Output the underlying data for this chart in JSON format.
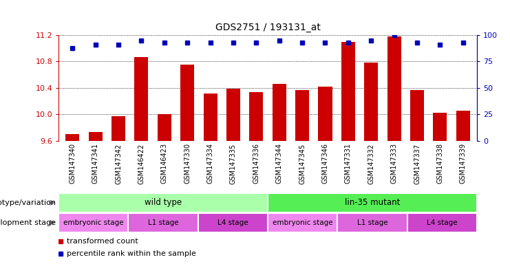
{
  "title": "GDS2751 / 193131_at",
  "samples": [
    "GSM147340",
    "GSM147341",
    "GSM147342",
    "GSM146422",
    "GSM146423",
    "GSM147330",
    "GSM147334",
    "GSM147335",
    "GSM147336",
    "GSM147344",
    "GSM147345",
    "GSM147346",
    "GSM147331",
    "GSM147332",
    "GSM147333",
    "GSM147337",
    "GSM147338",
    "GSM147339"
  ],
  "transformed_count": [
    9.7,
    9.73,
    9.97,
    10.87,
    10.0,
    10.75,
    10.32,
    10.39,
    10.34,
    10.46,
    10.37,
    10.42,
    11.1,
    10.78,
    11.18,
    10.37,
    10.02,
    10.05
  ],
  "percentile_rank": [
    88,
    91,
    91,
    95,
    93,
    93,
    93,
    93,
    93,
    95,
    93,
    93,
    93,
    95,
    100,
    93,
    91,
    93
  ],
  "ylim_left": [
    9.6,
    11.2
  ],
  "ylim_right": [
    0,
    100
  ],
  "yticks_left": [
    9.6,
    10.0,
    10.4,
    10.8,
    11.2
  ],
  "yticks_right": [
    0,
    25,
    50,
    75,
    100
  ],
  "bar_color": "#cc0000",
  "dot_color": "#0000bb",
  "bg_color": "#ffffff",
  "tick_area_color": "#c8c8c8",
  "genotype_row": {
    "label": "genotype/variation",
    "segments": [
      {
        "text": "wild type",
        "start": 0,
        "end": 9,
        "color": "#aaffaa"
      },
      {
        "text": "lin-35 mutant",
        "start": 9,
        "end": 18,
        "color": "#55ee55"
      }
    ]
  },
  "dev_stage_row": {
    "label": "development stage",
    "segments": [
      {
        "text": "embryonic stage",
        "start": 0,
        "end": 3,
        "color": "#ee88ee"
      },
      {
        "text": "L1 stage",
        "start": 3,
        "end": 6,
        "color": "#dd66dd"
      },
      {
        "text": "L4 stage",
        "start": 6,
        "end": 9,
        "color": "#cc44cc"
      },
      {
        "text": "embryonic stage",
        "start": 9,
        "end": 12,
        "color": "#ee88ee"
      },
      {
        "text": "L1 stage",
        "start": 12,
        "end": 15,
        "color": "#dd66dd"
      },
      {
        "text": "L4 stage",
        "start": 15,
        "end": 18,
        "color": "#cc44cc"
      }
    ]
  },
  "legend": [
    {
      "label": "transformed count",
      "color": "#cc0000",
      "marker": "s"
    },
    {
      "label": "percentile rank within the sample",
      "color": "#0000bb",
      "marker": "s"
    }
  ]
}
